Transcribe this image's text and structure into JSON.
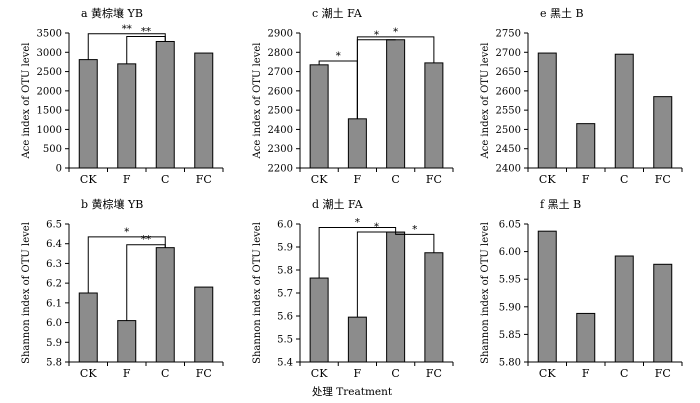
{
  "figure": {
    "xlabel": "处理 Treatment"
  },
  "chart_data": [
    {
      "type": "bar",
      "panel": "a",
      "title": "a  黄棕壤 YB",
      "ylabel": "Ace index of OTU level",
      "categories": [
        "CK",
        "F",
        "C",
        "FC"
      ],
      "values": [
        2810,
        2700,
        3280,
        2980
      ],
      "ylim": [
        0,
        3500
      ],
      "yticks": [
        0,
        500,
        1000,
        1500,
        2000,
        2500,
        3000,
        3500
      ],
      "ytick_labels": [
        "0",
        "500",
        "1000",
        "1500",
        "2000",
        "2500",
        "3000",
        "3500"
      ],
      "bar_color": "#8c8c8c",
      "significance": [
        {
          "from": 0,
          "to": 2,
          "label": "**",
          "level": 3480
        },
        {
          "from": 1,
          "to": 2,
          "label": "**",
          "level": 3410
        }
      ]
    },
    {
      "type": "bar",
      "panel": "c",
      "title": "c  潮土 FA",
      "ylabel": "Ace index of OTU level",
      "categories": [
        "CK",
        "F",
        "C",
        "FC"
      ],
      "values": [
        2735,
        2455,
        2865,
        2745
      ],
      "ylim": [
        2200,
        2900
      ],
      "yticks": [
        2200,
        2300,
        2400,
        2500,
        2600,
        2700,
        2800,
        2900
      ],
      "ytick_labels": [
        "2200",
        "2300",
        "2400",
        "2500",
        "2600",
        "2700",
        "2800",
        "2900"
      ],
      "bar_color": "#8c8c8c",
      "significance": [
        {
          "from": 0,
          "to": 1,
          "label": "*",
          "level": 2755
        },
        {
          "from": 1,
          "to": 2,
          "label": "*",
          "level": 2865
        },
        {
          "from": 1,
          "to": 3,
          "label": "*",
          "level": 2880
        }
      ]
    },
    {
      "type": "bar",
      "panel": "e",
      "title": "e  黑土 B",
      "ylabel": "Ace index of OTU level",
      "categories": [
        "CK",
        "F",
        "C",
        "FC"
      ],
      "values": [
        2698,
        2515,
        2695,
        2585
      ],
      "ylim": [
        2400,
        2750
      ],
      "yticks": [
        2400,
        2450,
        2500,
        2550,
        2600,
        2650,
        2700,
        2750
      ],
      "ytick_labels": [
        "2400",
        "2450",
        "2500",
        "2550",
        "2600",
        "2650",
        "2700",
        "2750"
      ],
      "bar_color": "#8c8c8c",
      "significance": []
    },
    {
      "type": "bar",
      "panel": "b",
      "title": "b  黄棕壤 YB",
      "ylabel": "Shannon index of OTU level",
      "categories": [
        "CK",
        "F",
        "C",
        "FC"
      ],
      "values": [
        6.15,
        6.01,
        6.38,
        6.18
      ],
      "ylim": [
        5.8,
        6.5
      ],
      "yticks": [
        5.8,
        5.9,
        6.0,
        6.1,
        6.2,
        6.3,
        6.4,
        6.5
      ],
      "ytick_labels": [
        "5.8",
        "5.9",
        "6.0",
        "6.1",
        "6.2",
        "6.3",
        "6.4",
        "6.5"
      ],
      "bar_color": "#8c8c8c",
      "significance": [
        {
          "from": 0,
          "to": 2,
          "label": "*",
          "level": 6.435
        },
        {
          "from": 1,
          "to": 2,
          "label": "**",
          "level": 6.395
        }
      ]
    },
    {
      "type": "bar",
      "panel": "d",
      "title": "d  潮土 FA",
      "ylabel": "Shannon index of OTU level",
      "categories": [
        "CK",
        "F",
        "C",
        "FC"
      ],
      "values": [
        5.765,
        5.595,
        5.965,
        5.875
      ],
      "ylim": [
        5.4,
        6.0
      ],
      "yticks": [
        5.4,
        5.5,
        5.6,
        5.7,
        5.8,
        5.9,
        6.0
      ],
      "ytick_labels": [
        "5.4",
        "5.5",
        "5.6",
        "5.7",
        "5.8",
        "5.9",
        "6.0"
      ],
      "bar_color": "#8c8c8c",
      "significance": [
        {
          "from": 0,
          "to": 2,
          "label": "*",
          "level": 5.985
        },
        {
          "from": 1,
          "to": 2,
          "label": "*",
          "level": 5.965
        },
        {
          "from": 2,
          "to": 3,
          "label": "*",
          "level": 5.955
        }
      ]
    },
    {
      "type": "bar",
      "panel": "f",
      "title": "f  黑土 B",
      "ylabel": "Shannon index of OTU level",
      "categories": [
        "CK",
        "F",
        "C",
        "FC"
      ],
      "values": [
        6.037,
        5.888,
        5.992,
        5.977
      ],
      "ylim": [
        5.8,
        6.05
      ],
      "yticks": [
        5.8,
        5.85,
        5.9,
        5.95,
        6.0,
        6.05
      ],
      "ytick_labels": [
        "5.80",
        "5.85",
        "5.90",
        "5.95",
        "6.00",
        "6.05"
      ],
      "bar_color": "#8c8c8c",
      "significance": []
    }
  ]
}
